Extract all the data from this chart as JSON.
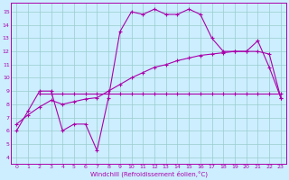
{
  "xlabel": "Windchill (Refroidissement éolien,°C)",
  "background_color": "#cceeff",
  "grid_color": "#99cccc",
  "line_color": "#aa00aa",
  "xlim": [
    -0.5,
    23.5
  ],
  "ylim": [
    3.5,
    15.7
  ],
  "xticks": [
    0,
    1,
    2,
    3,
    4,
    5,
    6,
    7,
    8,
    9,
    10,
    11,
    12,
    13,
    14,
    15,
    16,
    17,
    18,
    19,
    20,
    21,
    22,
    23
  ],
  "yticks": [
    4,
    5,
    6,
    7,
    8,
    9,
    10,
    11,
    12,
    13,
    14,
    15
  ],
  "line1_x": [
    0,
    1,
    2,
    3,
    4,
    5,
    6,
    7,
    8,
    9,
    10,
    11,
    12,
    13,
    14,
    15,
    16,
    17,
    18,
    19,
    20,
    21,
    22,
    23
  ],
  "line1_y": [
    6.0,
    7.5,
    9.0,
    9.0,
    6.0,
    6.5,
    6.5,
    4.5,
    8.5,
    13.5,
    15.0,
    14.8,
    15.2,
    14.8,
    14.8,
    15.2,
    14.8,
    13.0,
    12.0,
    12.0,
    12.0,
    12.8,
    10.8,
    8.5
  ],
  "line2_x": [
    0,
    1,
    2,
    3,
    4,
    5,
    6,
    7,
    8,
    9,
    10,
    11,
    12,
    13,
    14,
    15,
    16,
    17,
    18,
    19,
    20,
    21,
    22,
    23
  ],
  "line2_y": [
    6.5,
    7.2,
    7.8,
    8.3,
    8.0,
    8.2,
    8.4,
    8.5,
    9.0,
    9.5,
    10.0,
    10.4,
    10.8,
    11.0,
    11.3,
    11.5,
    11.7,
    11.8,
    11.9,
    12.0,
    12.0,
    12.0,
    11.8,
    8.5
  ],
  "line3_x": [
    2,
    3,
    4,
    5,
    6,
    7,
    8,
    9,
    10,
    11,
    12,
    13,
    14,
    15,
    16,
    17,
    18,
    19,
    20,
    21,
    22,
    23
  ],
  "line3_y": [
    8.8,
    8.8,
    8.8,
    8.8,
    8.8,
    8.8,
    8.8,
    8.8,
    8.8,
    8.8,
    8.8,
    8.8,
    8.8,
    8.8,
    8.8,
    8.8,
    8.8,
    8.8,
    8.8,
    8.8,
    8.8,
    8.8
  ]
}
